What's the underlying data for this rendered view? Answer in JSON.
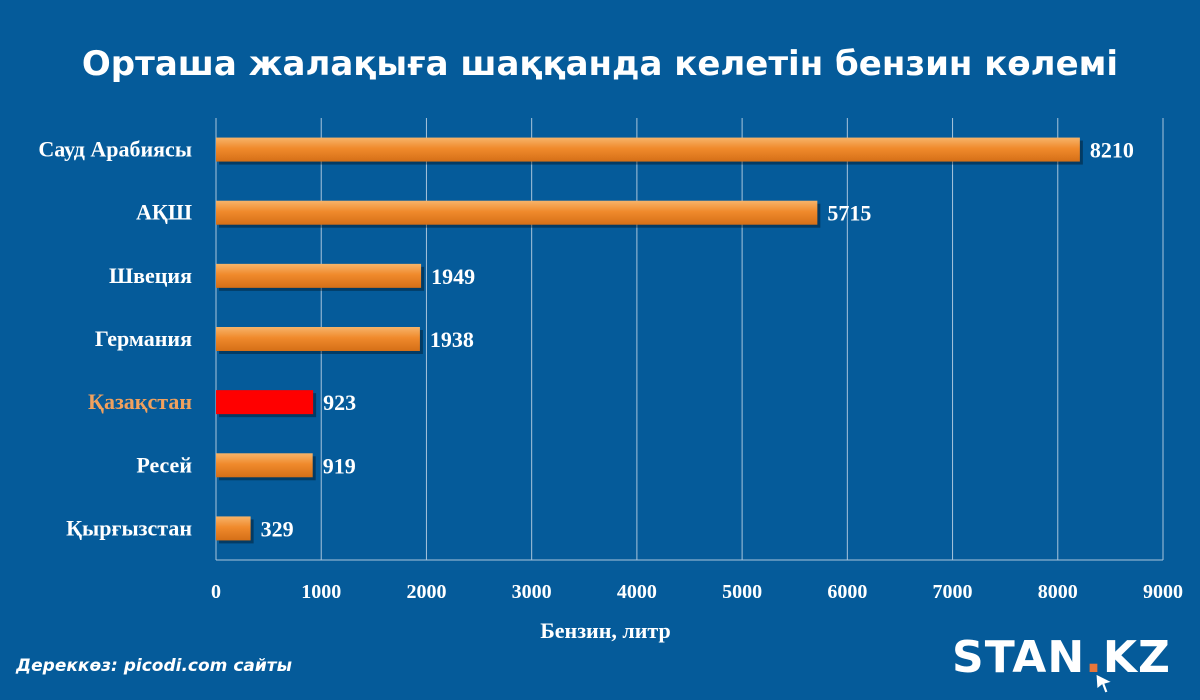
{
  "chart_data": {
    "type": "bar",
    "orientation": "horizontal",
    "title": "Орташа жалақыға шаққанда келетін бензин көлемі",
    "xlabel": "Бензин, литр",
    "ylabel": "",
    "xlim": [
      0,
      9000
    ],
    "xticks": [
      "0",
      "1000",
      "2000",
      "3000",
      "4000",
      "5000",
      "6000",
      "7000",
      "8000",
      "9000"
    ],
    "grid": true,
    "categories": [
      "Сауд Арабиясы",
      "АҚШ",
      "Швеция",
      "Германия",
      "Қазақстан",
      "Ресей",
      "Қырғызстан"
    ],
    "values": [
      8210,
      5715,
      1949,
      1938,
      923,
      919,
      329
    ],
    "data_labels": [
      "8210",
      "5715",
      "1949",
      "1938",
      "923",
      "919",
      "329"
    ],
    "highlight_category": "Қазақстан",
    "colors": {
      "bar": "#f08a2c",
      "bar_highlight": "#ff0000",
      "label_highlight": "#f0a15e",
      "background": "#055b9a",
      "grid": "#a9c5dc"
    }
  },
  "footer": {
    "source": "Дереккөз: picodi.com сайты",
    "logo_left": "STAN",
    "logo_dot": ".",
    "logo_right": "KZ"
  }
}
